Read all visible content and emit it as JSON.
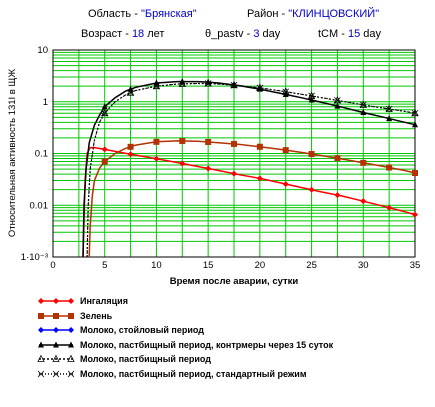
{
  "header": {
    "region_label": "Область -",
    "region_value": "\"Брянская\"",
    "district_label": "Район -",
    "district_value": "\"КЛИНЦОВСКИЙ\"",
    "age_label": "Возраст -",
    "age_value": "18",
    "age_unit": "лет",
    "pastv_label": "θ_pastv -",
    "pastv_value": "3",
    "pastv_unit": "day",
    "tcm_label": "tCM -",
    "tcm_value": "15",
    "tcm_unit": "day"
  },
  "colors": {
    "grid": "#00c800",
    "red": "#ff0000",
    "brown": "#b43200",
    "blue": "#0000ff",
    "black": "#000000",
    "value_text": "#0000c8"
  },
  "chart_data": {
    "type": "line",
    "xlabel": "Время после аварии, сутки",
    "ylabel": "Относительная активность 131I в ЩЖ",
    "xlim": [
      0,
      35
    ],
    "ylim": [
      0.001,
      10
    ],
    "yscale": "log",
    "xticks": [
      "0",
      "5",
      "10",
      "15",
      "20",
      "25",
      "30",
      "35"
    ],
    "yticks": [
      "1·10⁻³",
      "0.01",
      "0.1",
      "1",
      "10"
    ],
    "grid": true,
    "series": [
      {
        "name": "Ингаляция",
        "color": "#ff0000",
        "marker": "diamond",
        "x": [
          2.9,
          3.0,
          3.1,
          3.3,
          3.6,
          4.0,
          5,
          6,
          8,
          10,
          12,
          14,
          16,
          18,
          20,
          22,
          24,
          26,
          28,
          30,
          32,
          34,
          35
        ],
        "y": [
          0.001,
          0.005,
          0.03,
          0.1,
          0.13,
          0.13,
          0.12,
          0.11,
          0.093,
          0.079,
          0.067,
          0.056,
          0.047,
          0.039,
          0.033,
          0.027,
          0.022,
          0.018,
          0.015,
          0.012,
          0.0095,
          0.0075,
          0.0066
        ]
      },
      {
        "name": "Зелень",
        "color": "#b43200",
        "marker": "square",
        "x": [
          3.5,
          3.6,
          3.8,
          4.0,
          4.5,
          5,
          6,
          7,
          8,
          10,
          12,
          14,
          16,
          18,
          20,
          22,
          24,
          26,
          28,
          30,
          32,
          34,
          35
        ],
        "y": [
          0.001,
          0.004,
          0.015,
          0.03,
          0.052,
          0.07,
          0.1,
          0.125,
          0.145,
          0.168,
          0.175,
          0.172,
          0.162,
          0.15,
          0.135,
          0.12,
          0.105,
          0.091,
          0.078,
          0.066,
          0.056,
          0.047,
          0.042
        ]
      },
      {
        "name": "Молоко, стойловый период",
        "color": "#0000ff",
        "marker": "diamond",
        "x": [],
        "y": []
      },
      {
        "name": "Молоко, пастбищный период, контрмеры через 15 суток",
        "color": "#000000",
        "marker": "triangle-filled",
        "x": [
          2.9,
          3.0,
          3.2,
          3.5,
          4,
          4.5,
          5,
          6,
          7,
          8,
          10,
          12,
          14,
          15,
          16,
          18,
          20,
          22,
          24,
          26,
          28,
          30,
          32,
          34,
          35
        ],
        "y": [
          0.001,
          0.01,
          0.05,
          0.16,
          0.35,
          0.55,
          0.8,
          1.2,
          1.6,
          1.9,
          2.3,
          2.45,
          2.45,
          2.4,
          2.3,
          2.05,
          1.75,
          1.45,
          1.2,
          0.97,
          0.78,
          0.62,
          0.5,
          0.4,
          0.36
        ]
      },
      {
        "name": "Молоко, пастбищный период",
        "color": "#000000",
        "marker": "triangle-open",
        "x": [
          3.3,
          3.4,
          3.6,
          4,
          4.5,
          5,
          6,
          7,
          8,
          10,
          12,
          14,
          15,
          16,
          18,
          20,
          22,
          24,
          26,
          28,
          30,
          32,
          34,
          35
        ],
        "y": [
          0.001,
          0.01,
          0.05,
          0.18,
          0.4,
          0.6,
          1.0,
          1.35,
          1.65,
          2.0,
          2.2,
          2.25,
          2.25,
          2.2,
          2.05,
          1.85,
          1.62,
          1.4,
          1.2,
          1.02,
          0.87,
          0.75,
          0.65,
          0.6
        ]
      },
      {
        "name": "Молоко, пастбищный период, стандартный режим",
        "color": "#000000",
        "marker": "x",
        "x": [
          3.3,
          3.4,
          3.6,
          4,
          4.5,
          5,
          6,
          7,
          8,
          10,
          12,
          14,
          15,
          16,
          18,
          20,
          22,
          24,
          26,
          28,
          30,
          32,
          34,
          35
        ],
        "y": [
          0.001,
          0.01,
          0.05,
          0.18,
          0.4,
          0.6,
          1.0,
          1.35,
          1.65,
          2.0,
          2.2,
          2.25,
          2.25,
          2.2,
          2.05,
          1.85,
          1.62,
          1.4,
          1.2,
          1.02,
          0.87,
          0.75,
          0.65,
          0.6
        ]
      }
    ]
  }
}
